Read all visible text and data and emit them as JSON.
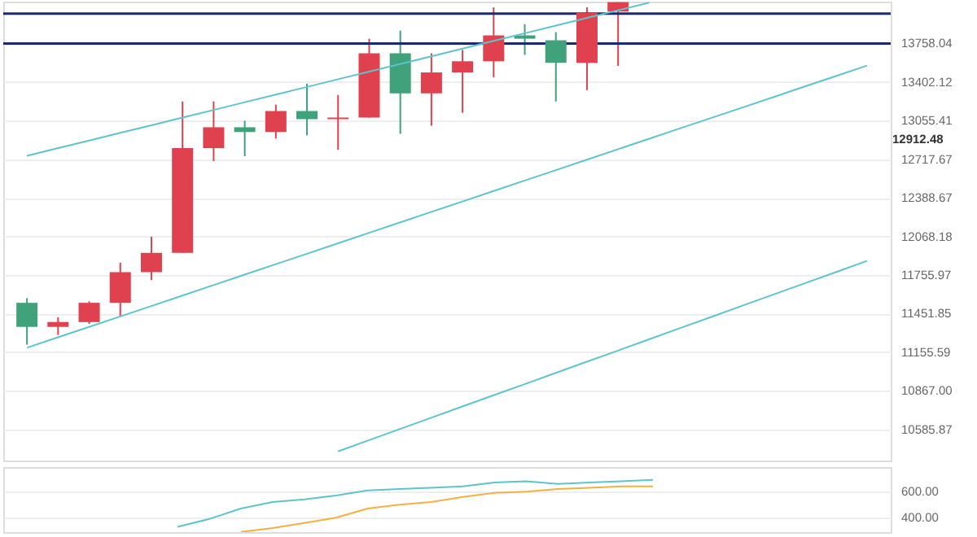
{
  "chart_data": [
    {
      "type": "candlestick",
      "categories": [
        null,
        null,
        null,
        null,
        null,
        null,
        null,
        null,
        null,
        null,
        null,
        null,
        null,
        null,
        null,
        null,
        null,
        null,
        null,
        null,
        null,
        null,
        null,
        null,
        null,
        null,
        null,
        null
      ],
      "ohlc": [
        [
          11536,
          11573,
          11213,
          11349
        ],
        [
          11349,
          11423,
          11287,
          11386
        ],
        [
          11386,
          11548,
          11373,
          11536
        ],
        [
          11536,
          11855,
          11436,
          11779
        ],
        [
          11779,
          12066,
          11715,
          11934
        ],
        [
          11934,
          13227,
          11934,
          12814
        ],
        [
          12814,
          13227,
          12702,
          12997
        ],
        [
          12997,
          13055,
          12744,
          12955
        ],
        [
          12955,
          13198,
          12898,
          13141
        ],
        [
          13141,
          13387,
          12926,
          13069
        ],
        [
          13069,
          13285,
          12799,
          13083
        ],
        [
          13083,
          13803,
          13083,
          13667
        ],
        [
          13667,
          13879,
          12939,
          13300
        ],
        [
          13300,
          13667,
          13011,
          13490
        ],
        [
          13490,
          13698,
          13126,
          13593
        ],
        [
          13593,
          14100,
          13446,
          13834
        ],
        [
          13834,
          13940,
          13652,
          13803
        ],
        [
          13788,
          13864,
          13227,
          13579
        ],
        [
          13579,
          14100,
          13329,
          14047
        ],
        [
          14060,
          14150,
          13550,
          14150
        ],
        null,
        null,
        null,
        null,
        null,
        null,
        null,
        null
      ],
      "colors": [
        "#3fa27a",
        "#e0414f",
        "#e0414f",
        "#e0414f",
        "#e0414f",
        "#e0414f",
        "#e0414f",
        "#3fa27a",
        "#e0414f",
        "#3fa27a",
        "#e0414f",
        "#e0414f",
        "#3fa27a",
        "#e0414f",
        "#e0414f",
        "#e0414f",
        "#3fa27a",
        "#3fa27a",
        "#e0414f",
        "#e0414f",
        null,
        null,
        null,
        null,
        null,
        null,
        null,
        null
      ],
      "series": [
        {
          "type": "line",
          "color": "#5ec4cc",
          "values": [
            12747,
            12814,
            12880,
            12948,
            13015,
            13083,
            13151,
            13220,
            13289,
            13358,
            13428,
            13498,
            13568,
            13639,
            13710,
            13782,
            13854,
            13926,
            13999,
            14072,
            14145,
            null,
            null,
            null,
            null,
            null,
            null,
            null
          ]
        },
        {
          "type": "line",
          "color": "#5ec4cc",
          "values": [
            11189,
            11269,
            11349,
            11430,
            11511,
            11593,
            11676,
            11759,
            11843,
            11927,
            12012,
            12098,
            12184,
            12271,
            12358,
            12446,
            12535,
            12624,
            12714,
            12805,
            12896,
            12988,
            13080,
            13173,
            13267,
            13362,
            13457,
            13553
          ]
        },
        {
          "type": "line",
          "color": "#5ec4cc",
          "values": [
            null,
            null,
            null,
            null,
            null,
            null,
            null,
            null,
            null,
            null,
            10429,
            10509,
            10589,
            10670,
            10752,
            10834,
            10916,
            11000,
            11084,
            11168,
            11254,
            11340,
            11426,
            11514,
            11602,
            11690,
            11779,
            11869
          ]
        }
      ],
      "ref_lines": [
        {
          "axis": "y",
          "value": 14040,
          "color": "#1a2a6c"
        },
        {
          "axis": "y",
          "value": 13758.04,
          "color": "#1a2a6c"
        }
      ],
      "annotations": [
        "12912.48"
      ],
      "ylim": [
        10364,
        14155
      ],
      "log": "y",
      "yticks": [
        13758.04,
        13402.12,
        13055.41,
        12717.67,
        12388.67,
        12068.18,
        11755.97,
        11451.85,
        11155.59,
        {
          "value": 10867,
          "label": "10867.00"
        },
        10585.87
      ],
      "tick_labels": "y",
      "grid": "y"
    },
    {
      "type": "line",
      "categories": [
        null,
        null,
        null,
        null,
        null,
        null,
        null,
        null,
        null,
        null,
        null,
        null,
        null,
        null,
        null,
        null,
        null,
        null,
        null,
        null,
        null,
        null,
        null,
        null,
        null,
        null,
        null,
        null
      ],
      "series": [
        {
          "color": "#5ec4cc",
          "values": [
            null,
            null,
            null,
            null,
            null,
            330,
            390,
            470,
            520,
            540,
            570,
            610,
            620,
            630,
            640,
            670,
            680,
            660,
            670,
            680,
            690,
            null,
            null,
            null,
            null,
            null,
            null,
            null
          ]
        },
        {
          "color": "#f5b041",
          "values": [
            null,
            null,
            null,
            null,
            null,
            null,
            null,
            290,
            320,
            360,
            400,
            470,
            500,
            520,
            560,
            590,
            600,
            620,
            630,
            640,
            640,
            null,
            null,
            null,
            null,
            null,
            null,
            null
          ]
        }
      ],
      "ylim": [
        289,
        789
      ],
      "yticks": [
        {
          "value": 600,
          "label": "600.00"
        },
        {
          "value": 400,
          "label": "400.00"
        }
      ],
      "tick_labels": "y",
      "grid": "y"
    }
  ]
}
